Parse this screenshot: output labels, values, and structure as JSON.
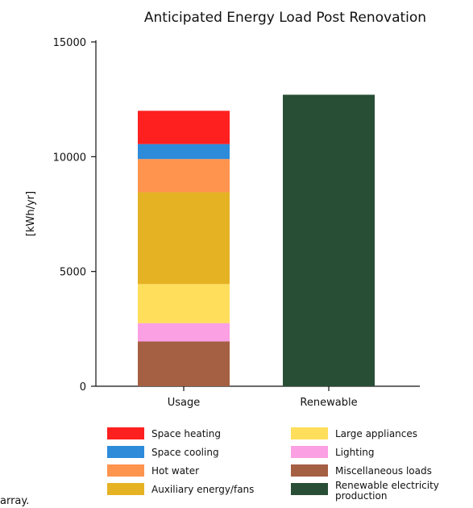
{
  "chart_data": {
    "type": "bar",
    "stacked": true,
    "title": "Anticipated Energy Load Post Renovation",
    "xlabel": "",
    "ylabel": "[kWh/yr]",
    "ylim": [
      0,
      15000
    ],
    "yticks": [
      0,
      5000,
      10000,
      15000
    ],
    "ytick_labels": [
      "0",
      "5000",
      "10000",
      "15000"
    ],
    "categories": [
      "Usage",
      "Renewable"
    ],
    "series": [
      {
        "name": "Miscellaneous loads",
        "color": "#a55f43",
        "values": [
          1950,
          0
        ]
      },
      {
        "name": "Lighting",
        "color": "#fba0e3",
        "values": [
          800,
          0
        ]
      },
      {
        "name": "Large appliances",
        "color": "#ffde5b",
        "values": [
          1700,
          0
        ]
      },
      {
        "name": "Auxiliary energy/fans",
        "color": "#e5b224",
        "values": [
          4000,
          0
        ]
      },
      {
        "name": "Hot water",
        "color": "#ff944f",
        "values": [
          1450,
          0
        ]
      },
      {
        "name": "Space cooling",
        "color": "#2d8bda",
        "values": [
          650,
          0
        ]
      },
      {
        "name": "Space heating",
        "color": "#fe1f1f",
        "values": [
          1450,
          0
        ]
      },
      {
        "name": "Renewable electricity production",
        "color": "#294e36",
        "values": [
          0,
          12700
        ]
      }
    ],
    "legend": {
      "placement": "bottom",
      "columns": [
        [
          "Space heating",
          "Space cooling",
          "Hot water",
          "Auxiliary energy/fans"
        ],
        [
          "Large appliances",
          "Lighting",
          "Miscellaneous loads",
          "Renewable electricity production"
        ]
      ]
    },
    "grid": false
  },
  "footnote": "array."
}
